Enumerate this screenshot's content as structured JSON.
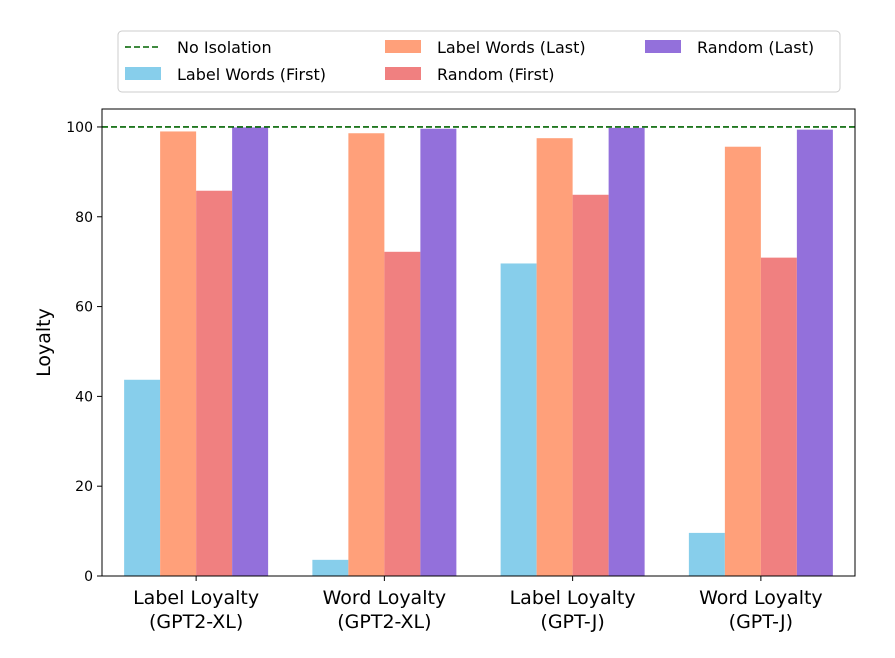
{
  "chart_data": {
    "type": "bar",
    "title": "",
    "xlabel": "",
    "ylabel": "Loyalty",
    "ylim": [
      0,
      104
    ],
    "yticks": [
      0,
      20,
      40,
      60,
      80,
      100
    ],
    "grid": false,
    "legend_position": "top",
    "categories": [
      [
        "Label Loyalty",
        "(GPT2-XL)"
      ],
      [
        "Word Loyalty",
        "(GPT2-XL)"
      ],
      [
        "Label Loyalty",
        "(GPT-J)"
      ],
      [
        "Word Loyalty",
        "(GPT-J)"
      ]
    ],
    "series": [
      {
        "name": "Label Words (First)",
        "color": "#87ceeb",
        "values": [
          43.7,
          3.6,
          69.6,
          9.6
        ]
      },
      {
        "name": "Label Words (Last)",
        "color": "#ffa07a",
        "values": [
          99.0,
          98.6,
          97.5,
          95.6
        ]
      },
      {
        "name": "Random (First)",
        "color": "#f08080",
        "values": [
          85.8,
          72.2,
          84.9,
          70.9
        ]
      },
      {
        "name": "Random (Last)",
        "color": "#9370db",
        "values": [
          99.9,
          99.6,
          99.8,
          99.4
        ]
      }
    ],
    "reference_line": {
      "name": "No Isolation",
      "value": 100,
      "color": "#006400",
      "style": "dashed"
    }
  }
}
